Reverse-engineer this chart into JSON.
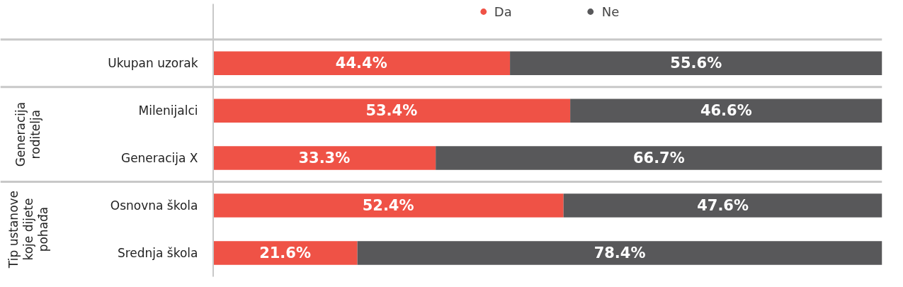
{
  "chart_data": {
    "type": "bar",
    "orientation": "horizontal",
    "stacked": true,
    "legend": "top",
    "grid": false,
    "data_labels": true,
    "categories": [
      "Ukupan uzorak",
      "Milenijalci",
      "Generacija X",
      "Osnovna škola",
      "Srednja škola"
    ],
    "series": [
      {
        "name": "Da",
        "color": "#ef5246",
        "values": [
          44.4,
          53.4,
          33.3,
          52.4,
          21.6
        ],
        "value_labels": [
          "44.4%",
          "53.4%",
          "33.3%",
          "52.4%",
          "21.6%"
        ]
      },
      {
        "name": "Ne",
        "color": "#58585a",
        "values": [
          55.6,
          46.6,
          66.7,
          47.6,
          78.4
        ],
        "value_labels": [
          "55.6%",
          "46.6%",
          "66.7%",
          "47.6%",
          "78.4%"
        ]
      }
    ],
    "annotations": [
      "Generacija roditelja",
      "Tip ustanove koje dijete pohađa"
    ]
  }
}
